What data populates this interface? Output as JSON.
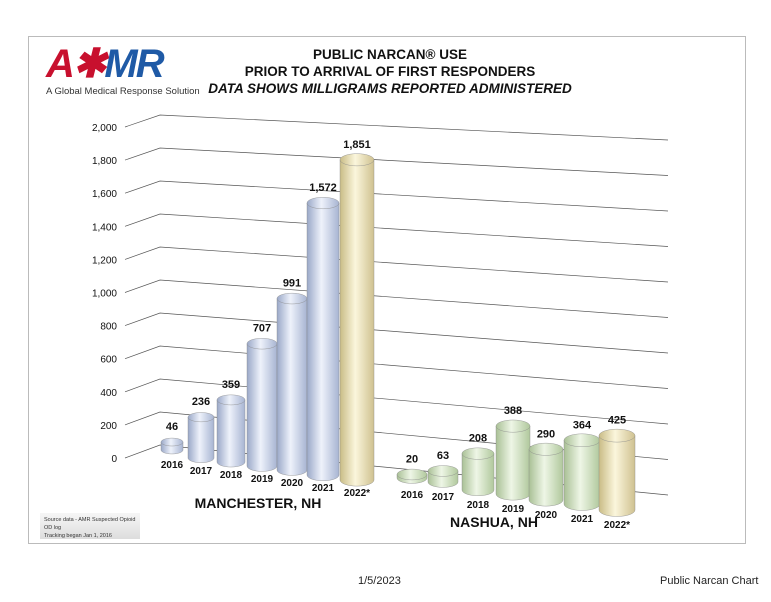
{
  "logo": {
    "text": "AMR",
    "tagline": "A Global Medical Response Solution"
  },
  "chart_data": {
    "type": "bar",
    "title": [
      "PUBLIC NARCAN® USE",
      "PRIOR TO ARRIVAL OF FIRST RESPONDERS"
    ],
    "subtitle": "DATA SHOWS MILLIGRAMS REPORTED ADMINISTERED",
    "ylim": [
      0,
      2000
    ],
    "yticks": [
      "0",
      "200",
      "400",
      "600",
      "800",
      "1,000",
      "1,200",
      "1,400",
      "1,600",
      "1,800",
      "2,000"
    ],
    "groups": [
      {
        "name": "MANCHESTER, NH",
        "categories": [
          "2016",
          "2017",
          "2018",
          "2019",
          "2020",
          "2021",
          "2022*"
        ],
        "values": [
          46,
          236,
          359,
          707,
          991,
          1572,
          1851
        ],
        "labels": [
          "46",
          "236",
          "359",
          "707",
          "991",
          "1,572",
          "1,851"
        ]
      },
      {
        "name": "NASHUA, NH",
        "categories": [
          "2016",
          "2017",
          "2018",
          "2019",
          "2020",
          "2021",
          "2022*"
        ],
        "values": [
          20,
          63,
          208,
          388,
          290,
          364,
          425
        ],
        "labels": [
          "20",
          "63",
          "208",
          "388",
          "290",
          "364",
          "425"
        ]
      }
    ],
    "colors": {
      "manchester": "#c9d5ef",
      "nashua": "#d5e8c6",
      "current": "#f1e7b8"
    }
  },
  "note": [
    "Source data - AMR Suspected Opioid OD log",
    "Tracking began Jan 1, 2016"
  ],
  "footer": {
    "date": "1/5/2023",
    "name": "Public Narcan Chart"
  }
}
